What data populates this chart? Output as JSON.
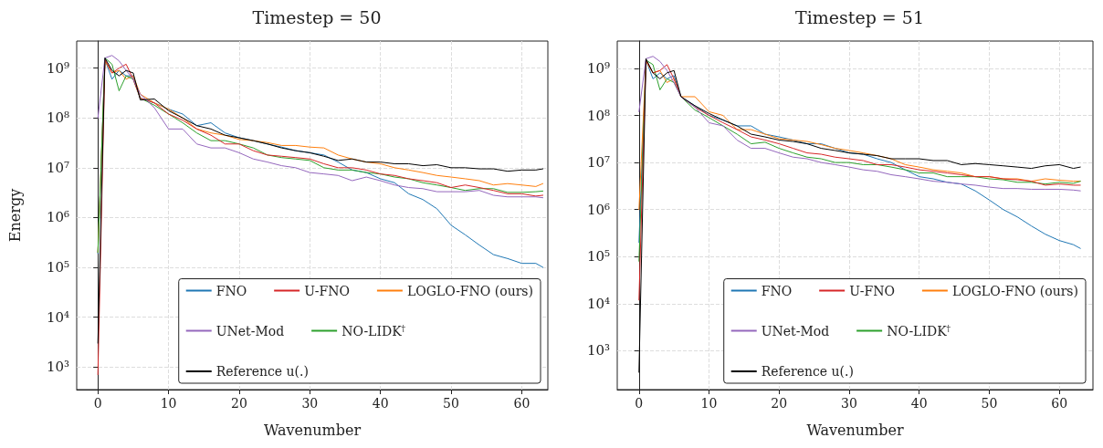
{
  "chart_data": [
    {
      "type": "line",
      "title": "Timestep = 50",
      "xlabel": "Wavenumber",
      "ylabel": "Energy",
      "log": "y",
      "grid": true,
      "legend": "bottom right",
      "line_style": "solid",
      "marker": "none",
      "x": [
        0,
        1,
        2,
        3,
        4,
        5,
        6,
        8,
        10,
        12,
        14,
        16,
        18,
        20,
        22,
        24,
        26,
        28,
        30,
        32,
        34,
        36,
        38,
        40,
        42,
        44,
        46,
        48,
        50,
        52,
        54,
        56,
        58,
        60,
        62,
        63
      ],
      "xlim": [
        -3,
        63.7
      ],
      "ylim": [
        350,
        3500000000
      ],
      "xticks": [
        0,
        10,
        20,
        30,
        40,
        50,
        60
      ],
      "yticks": [
        {
          "value": 1000,
          "label": "10³"
        },
        {
          "value": 10000,
          "label": "10⁴"
        },
        {
          "value": 100000,
          "label": "10⁵"
        },
        {
          "value": 1000000,
          "label": "10⁶"
        },
        {
          "value": 10000000,
          "label": "10⁷"
        },
        {
          "value": 100000000,
          "label": "10⁸"
        },
        {
          "value": 1000000000,
          "label": "10⁹"
        }
      ],
      "series": [
        {
          "name": "FNO",
          "color": "#1f77b4",
          "values": [
            190000,
            1500000000,
            600000000,
            900000000,
            700000000,
            700000000,
            250000000,
            200000000,
            150000000,
            120000000,
            70000000,
            80000000,
            50000000,
            40000000,
            35000000,
            30000000,
            26000000,
            22000000,
            20000000,
            18000000,
            13000000,
            9000000,
            8000000,
            6000000,
            5000000,
            3000000,
            2300000,
            1500000,
            700000,
            450000,
            280000,
            180000,
            150000,
            120000,
            120000,
            100000
          ]
        },
        {
          "name": "LOGLO-FNO (ours)",
          "color": "#ff7f0e",
          "values": [
            200000,
            1400000000,
            800000000,
            900000000,
            600000000,
            700000000,
            300000000,
            200000000,
            150000000,
            100000000,
            60000000,
            50000000,
            45000000,
            37000000,
            35000000,
            32000000,
            28000000,
            28000000,
            26000000,
            25000000,
            18000000,
            15000000,
            13000000,
            12000000,
            10000000,
            9000000,
            8000000,
            7000000,
            6500000,
            6000000,
            5500000,
            4500000,
            4800000,
            4500000,
            4200000,
            4800000
          ]
        },
        {
          "name": "NO-LIDK$^{†}$",
          "color": "#2ca02c",
          "values": [
            200000,
            1600000000,
            1200000000,
            350000000,
            700000000,
            600000000,
            250000000,
            180000000,
            120000000,
            80000000,
            50000000,
            35000000,
            35000000,
            30000000,
            25000000,
            18000000,
            16000000,
            15000000,
            14000000,
            10000000,
            9000000,
            9000000,
            8000000,
            7500000,
            6500000,
            6000000,
            5000000,
            4500000,
            4000000,
            3500000,
            3800000,
            3800000,
            3200000,
            3200000,
            3300000,
            3400000
          ]
        },
        {
          "name": "U-FNO",
          "color": "#d62728",
          "values": [
            700,
            1500000000,
            800000000,
            1000000000,
            1200000000,
            600000000,
            250000000,
            200000000,
            120000000,
            90000000,
            60000000,
            45000000,
            30000000,
            30000000,
            22000000,
            18000000,
            17000000,
            16000000,
            15000000,
            12000000,
            10000000,
            10000000,
            9000000,
            7500000,
            7000000,
            6000000,
            5500000,
            5000000,
            4000000,
            4500000,
            4000000,
            3500000,
            3000000,
            3000000,
            2700000,
            2800000
          ]
        },
        {
          "name": "UNet-Mod",
          "color": "#9467bd",
          "values": [
            100000000,
            1600000000,
            1800000000,
            1400000000,
            900000000,
            600000000,
            300000000,
            160000000,
            60000000,
            60000000,
            30000000,
            25000000,
            25000000,
            20000000,
            15000000,
            13000000,
            11000000,
            10000000,
            8000000,
            7500000,
            7000000,
            5500000,
            6500000,
            5500000,
            4500000,
            4000000,
            3800000,
            3300000,
            3300000,
            3300000,
            3500000,
            2800000,
            2600000,
            2600000,
            2600000,
            2500000
          ]
        },
        {
          "name": "Reference u(.)",
          "color": "#000000",
          "values": [
            3000,
            1600000000,
            900000000,
            700000000,
            900000000,
            800000000,
            230000000,
            240000000,
            140000000,
            100000000,
            70000000,
            60000000,
            45000000,
            40000000,
            35000000,
            30000000,
            25000000,
            22000000,
            20000000,
            17000000,
            14000000,
            15000000,
            13000000,
            13000000,
            12000000,
            12000000,
            11000000,
            11500000,
            10000000,
            10000000,
            9500000,
            9500000,
            8500000,
            9000000,
            9000000,
            9500000
          ]
        }
      ]
    },
    {
      "type": "line",
      "title": "Timestep = 51",
      "xlabel": "Wavenumber",
      "log": "y",
      "grid": true,
      "legend": "bottom right",
      "line_style": "solid",
      "marker": "none",
      "x": [
        0,
        1,
        2,
        3,
        4,
        5,
        6,
        8,
        10,
        12,
        14,
        16,
        18,
        20,
        22,
        24,
        26,
        28,
        30,
        32,
        34,
        36,
        38,
        40,
        42,
        44,
        46,
        48,
        50,
        52,
        54,
        56,
        58,
        60,
        62,
        63
      ],
      "xlim": [
        -3.1,
        64.8
      ],
      "ylim": [
        150,
        3800000000
      ],
      "xticks": [
        0,
        10,
        20,
        30,
        40,
        50,
        60
      ],
      "yticks": [
        {
          "value": 1000,
          "label": "10³"
        },
        {
          "value": 10000,
          "label": "10⁴"
        },
        {
          "value": 100000,
          "label": "10⁵"
        },
        {
          "value": 1000000,
          "label": "10⁶"
        },
        {
          "value": 10000000,
          "label": "10⁷"
        },
        {
          "value": 100000000,
          "label": "10⁸"
        },
        {
          "value": 1000000000,
          "label": "10⁹"
        }
      ],
      "series": [
        {
          "name": "FNO",
          "color": "#1f77b4",
          "values": [
            200000,
            1500000000,
            600000000,
            800000000,
            600000000,
            700000000,
            250000000,
            160000000,
            100000000,
            80000000,
            60000000,
            60000000,
            40000000,
            35000000,
            30000000,
            25000000,
            25000000,
            20000000,
            16000000,
            15000000,
            12000000,
            10000000,
            7000000,
            5000000,
            4500000,
            3800000,
            3500000,
            2500000,
            1600000,
            1000000,
            700000,
            450000,
            300000,
            220000,
            180000,
            150000
          ]
        },
        {
          "name": "LOGLO-FNO (ours)",
          "color": "#ff7f0e",
          "values": [
            1000000,
            1400000000,
            800000000,
            900000000,
            500000000,
            600000000,
            250000000,
            250000000,
            120000000,
            100000000,
            50000000,
            50000000,
            40000000,
            32000000,
            30000000,
            28000000,
            24000000,
            20000000,
            18000000,
            16000000,
            14000000,
            12000000,
            9000000,
            8000000,
            7000000,
            6500000,
            6000000,
            5000000,
            5000000,
            4500000,
            4500000,
            4000000,
            4500000,
            4200000,
            4000000,
            4000000
          ]
        },
        {
          "name": "NO-LIDK$^{†}$",
          "color": "#2ca02c",
          "values": [
            80000,
            1500000000,
            1200000000,
            350000000,
            600000000,
            500000000,
            250000000,
            130000000,
            90000000,
            60000000,
            40000000,
            25000000,
            27000000,
            20000000,
            16000000,
            13000000,
            12000000,
            10000000,
            10000000,
            9000000,
            9000000,
            8000000,
            7000000,
            6000000,
            6000000,
            5000000,
            5000000,
            5000000,
            4500000,
            4300000,
            3800000,
            3800000,
            3500000,
            3800000,
            3600000,
            4000000
          ]
        },
        {
          "name": "U-FNO",
          "color": "#d62728",
          "values": [
            12000,
            1500000000,
            800000000,
            900000000,
            1200000000,
            600000000,
            250000000,
            150000000,
            100000000,
            70000000,
            50000000,
            35000000,
            30000000,
            25000000,
            20000000,
            16000000,
            15000000,
            13000000,
            12000000,
            11000000,
            9000000,
            9000000,
            8000000,
            7000000,
            6500000,
            6000000,
            5500000,
            5000000,
            5000000,
            4500000,
            4300000,
            4000000,
            3300000,
            3500000,
            3300000,
            3300000
          ]
        },
        {
          "name": "UNet-Mod",
          "color": "#9467bd",
          "values": [
            120000000,
            1600000000,
            1800000000,
            1400000000,
            900000000,
            500000000,
            250000000,
            150000000,
            70000000,
            60000000,
            30000000,
            20000000,
            20000000,
            16000000,
            13000000,
            12000000,
            10000000,
            9000000,
            8000000,
            7000000,
            6500000,
            5500000,
            5000000,
            4500000,
            4000000,
            3800000,
            3500000,
            3300000,
            3000000,
            2800000,
            2800000,
            2700000,
            2700000,
            2700000,
            2600000,
            2500000
          ]
        },
        {
          "name": "Reference u(.)",
          "color": "#000000",
          "values": [
            350,
            1600000000,
            800000000,
            600000000,
            800000000,
            900000000,
            250000000,
            160000000,
            110000000,
            80000000,
            60000000,
            40000000,
            35000000,
            30000000,
            28000000,
            25000000,
            20000000,
            18000000,
            16000000,
            15000000,
            14000000,
            12000000,
            12000000,
            12000000,
            11000000,
            11000000,
            9000000,
            9500000,
            9000000,
            8500000,
            8000000,
            7500000,
            8500000,
            9000000,
            7500000,
            8000000
          ]
        }
      ]
    }
  ]
}
